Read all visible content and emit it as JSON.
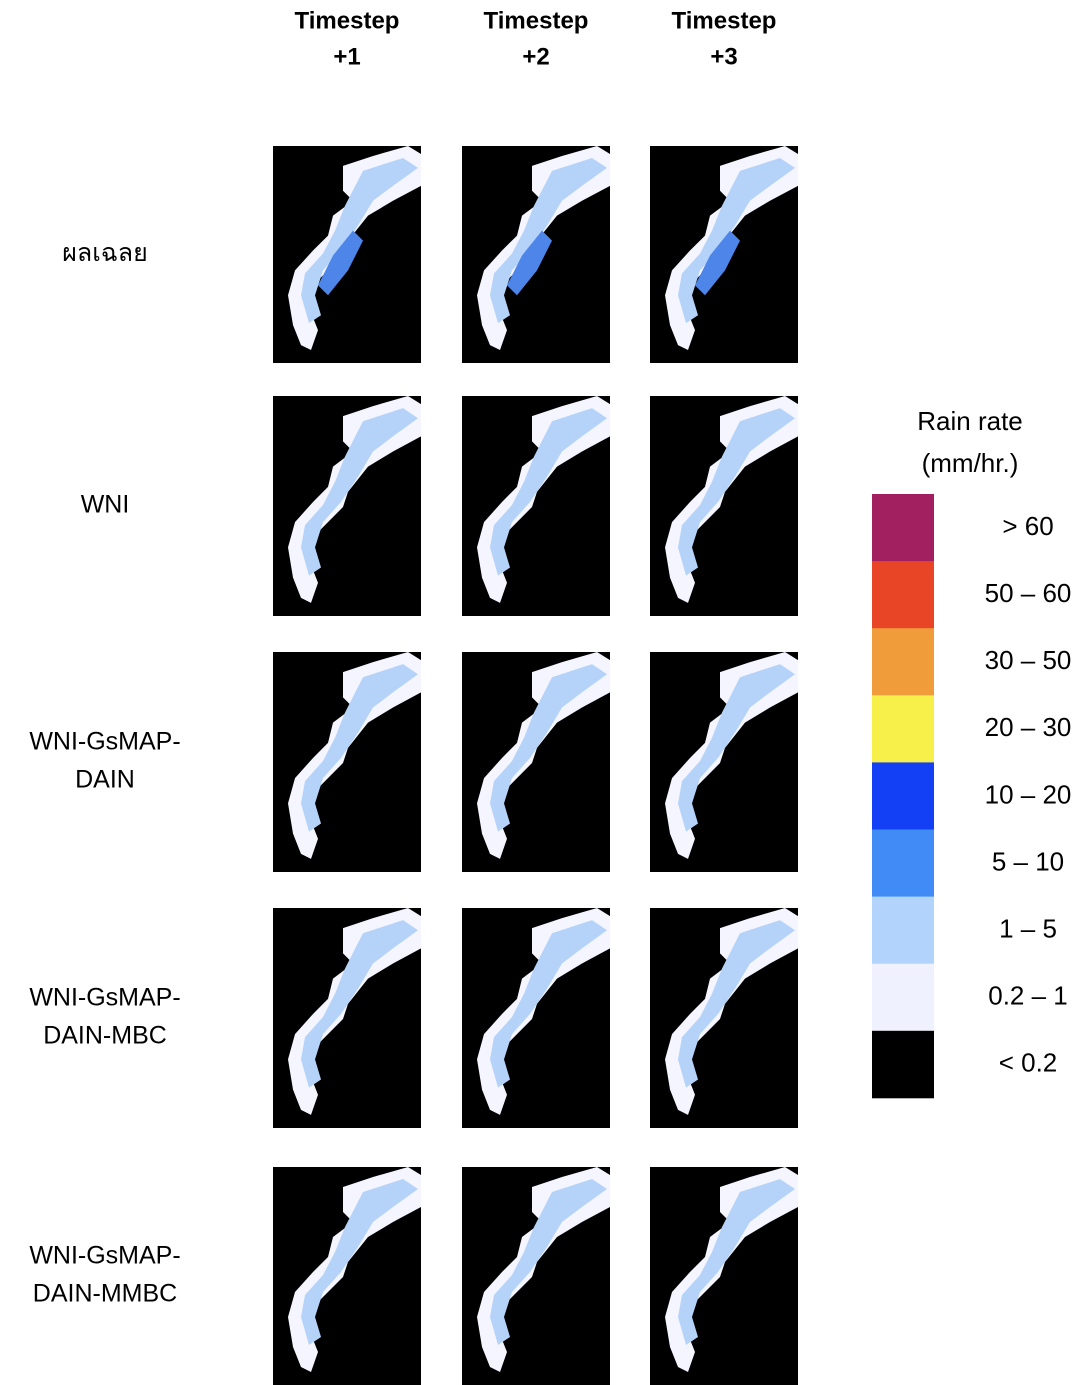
{
  "columns": [
    {
      "lines": [
        "Timestep",
        "+1"
      ]
    },
    {
      "lines": [
        "Timestep",
        "+2"
      ]
    },
    {
      "lines": [
        "Timestep",
        "+3"
      ]
    }
  ],
  "rows": [
    {
      "lines": [
        "ผลเฉลย"
      ]
    },
    {
      "lines": [
        "WNI"
      ]
    },
    {
      "lines": [
        "WNI-GsMAP-",
        "DAIN"
      ]
    },
    {
      "lines": [
        "WNI-GsMAP-",
        "DAIN-MBC"
      ]
    },
    {
      "lines": [
        "WNI-GsMAP-",
        "DAIN-MMBC"
      ]
    }
  ],
  "legend": {
    "title": [
      "Rain rate",
      "(mm/hr.)"
    ],
    "items": [
      {
        "label": "> 60",
        "color": "#a21f60"
      },
      {
        "label": "50 – 60",
        "color": "#e84426"
      },
      {
        "label": "30 – 50",
        "color": "#f09c3a"
      },
      {
        "label": "20 – 30",
        "color": "#f7f04a"
      },
      {
        "label": "10 – 20",
        "color": "#1440f5"
      },
      {
        "label": "5 – 10",
        "color": "#418bf6"
      },
      {
        "label": "1 – 5",
        "color": "#b1d3fc"
      },
      {
        "label": "0.2 – 1",
        "color": "#f0f1fe"
      },
      {
        "label": "< 0.2",
        "color": "#000000"
      }
    ]
  }
}
